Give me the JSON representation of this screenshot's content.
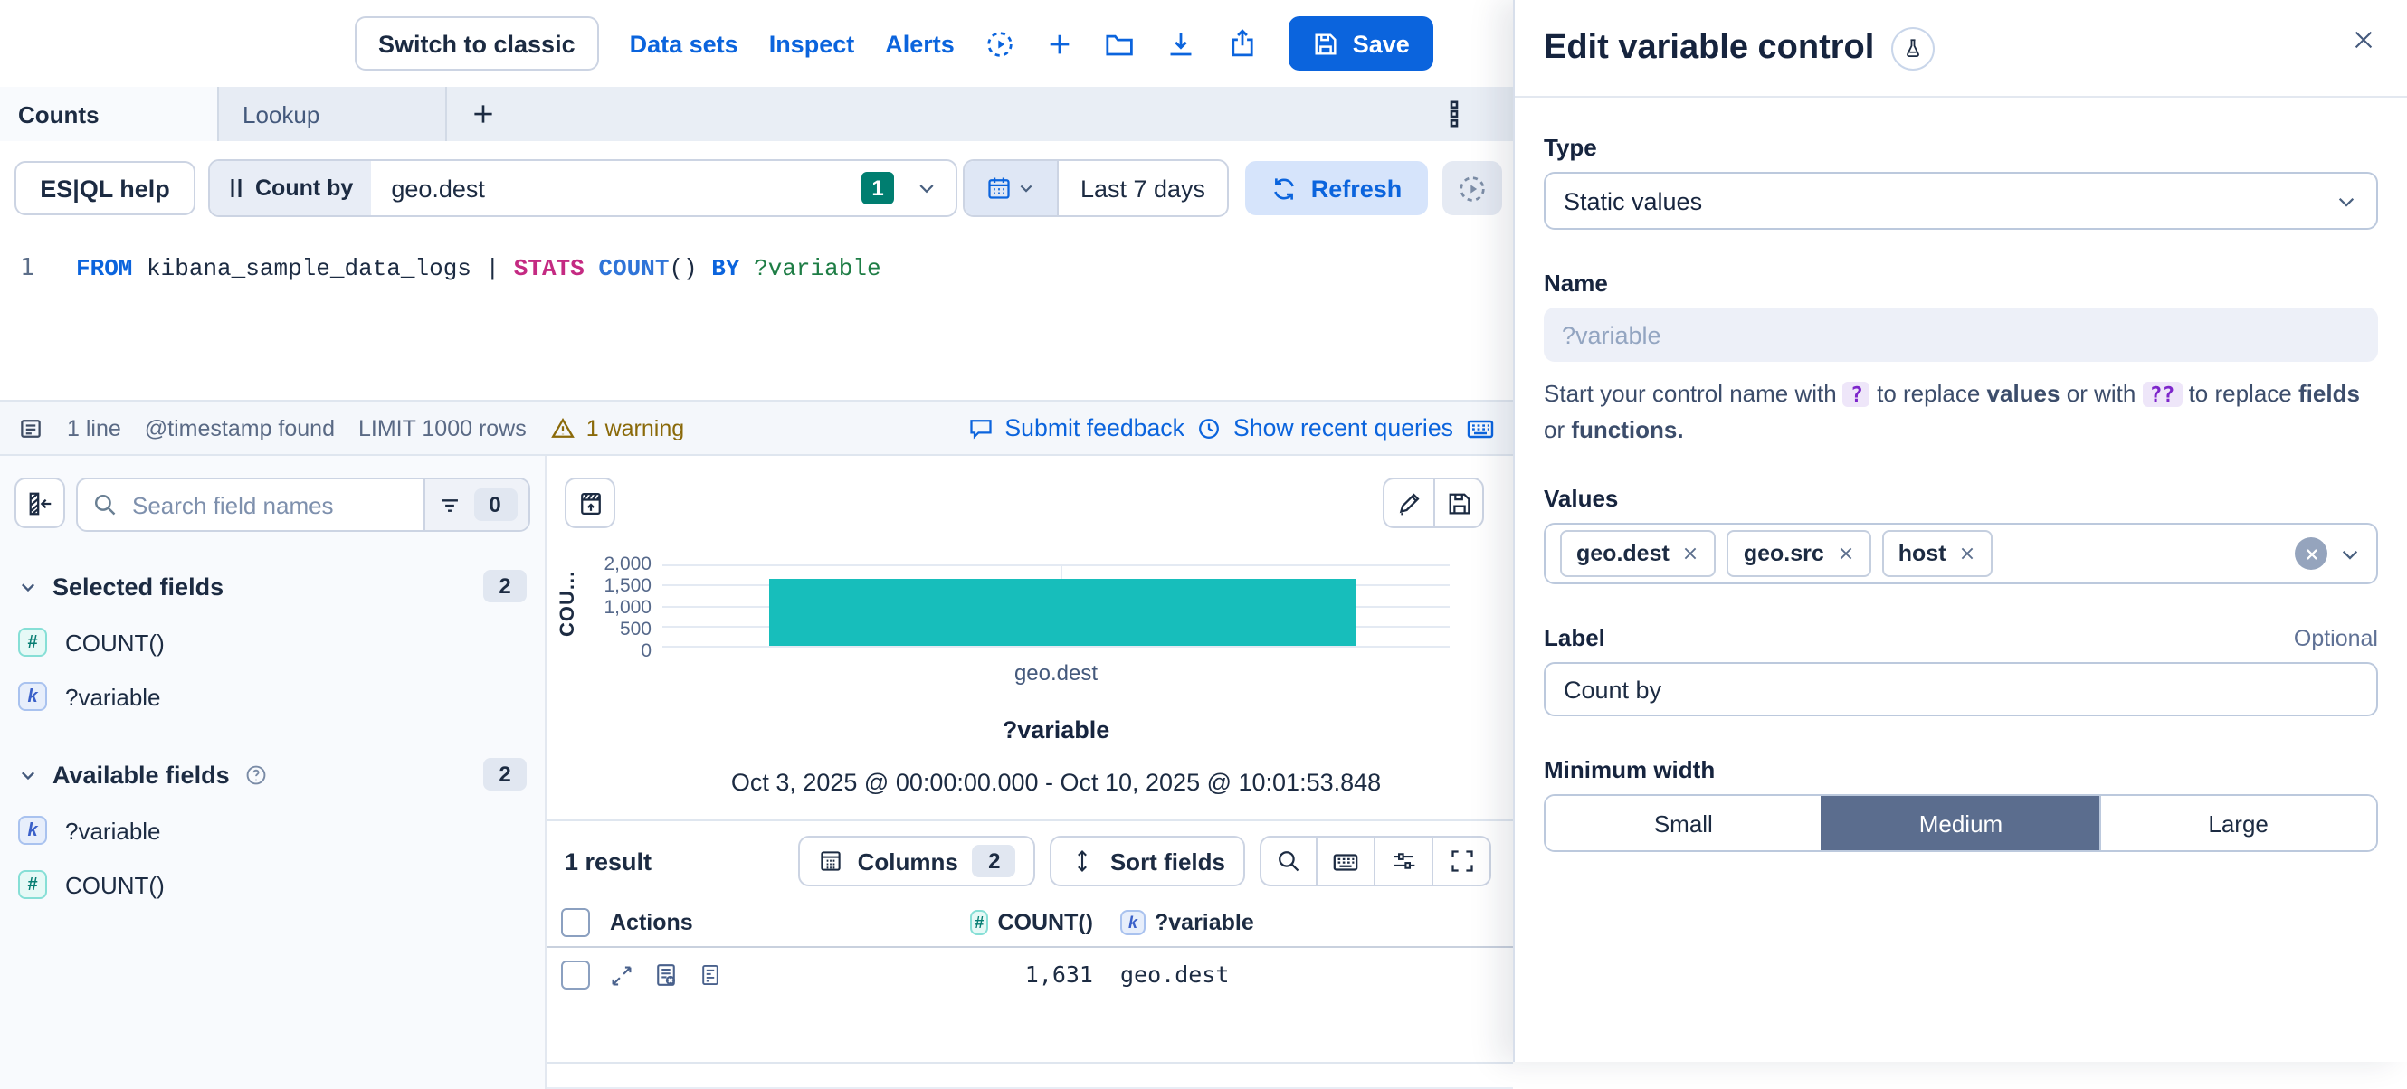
{
  "header": {
    "switch_to_classic": "Switch to classic",
    "nav": [
      "Data sets",
      "Inspect",
      "Alerts"
    ],
    "save_label": "Save"
  },
  "tabs": {
    "counts": "Counts",
    "lookup": "Lookup"
  },
  "query": {
    "help_label": "ES|QL help",
    "control_prefix": "Count by",
    "control_value": "geo.dest",
    "control_badge": "1",
    "time_range": "Last 7 days",
    "refresh_label": "Refresh"
  },
  "editor": {
    "line_number": "1",
    "code": {
      "kw_from": "FROM",
      "source": " kibana_sample_data_logs ",
      "pipe": "| ",
      "kw_stats": "STATS",
      "sp1": " ",
      "fn_count": "COUNT",
      "parens": "()",
      "sp2": " ",
      "kw_by": "BY",
      "sp3": " ",
      "variable": "?variable"
    },
    "footer": {
      "lines": "1 line",
      "timestamp": "@timestamp found",
      "limit": "LIMIT 1000 rows",
      "warning": "1 warning",
      "feedback": "Submit feedback",
      "recent": "Show recent queries"
    }
  },
  "sidebar": {
    "search_placeholder": "Search field names",
    "filter_count": "0",
    "selected": {
      "label": "Selected fields",
      "count": "2",
      "fields": [
        {
          "kind": "number",
          "glyph": "#",
          "name": "COUNT()"
        },
        {
          "kind": "keyword",
          "glyph": "k",
          "name": "?variable"
        }
      ]
    },
    "available": {
      "label": "Available fields",
      "count": "2",
      "fields": [
        {
          "kind": "keyword",
          "glyph": "k",
          "name": "?variable"
        },
        {
          "kind": "number",
          "glyph": "#",
          "name": "COUNT()"
        }
      ]
    }
  },
  "chart_data": {
    "type": "bar",
    "title": "?variable",
    "subtitle": "Oct 3, 2025 @ 00:00:00.000 - Oct 10, 2025 @ 10:01:53.848",
    "categories": [
      "geo.dest"
    ],
    "values": [
      1631
    ],
    "xlabel": "geo.dest",
    "ylabel": "COUNT()",
    "ylabel_display": "COU...",
    "ylim": [
      0,
      2000
    ],
    "yticks": [
      0,
      500,
      1000,
      1500,
      2000
    ],
    "ytick_labels": [
      "0",
      "500",
      "1,000",
      "1,500",
      "2,000"
    ],
    "bar_color": "#17bebb",
    "grid": true,
    "legend": false
  },
  "results": {
    "count": "1 result",
    "columns_label": "Columns",
    "columns_count": "2",
    "sort_label": "Sort fields",
    "table": {
      "actions": "Actions",
      "count_col": "COUNT()",
      "count_glyph": "#",
      "var_col": "?variable",
      "var_glyph": "k",
      "rows": [
        {
          "count": "1,631",
          "value": "geo.dest"
        }
      ]
    }
  },
  "panel": {
    "title": "Edit variable control",
    "type_label": "Type",
    "type_value": "Static values",
    "name_label": "Name",
    "name_placeholder": "?variable",
    "hint": {
      "p1": "Start your control name with",
      "code1": "?",
      "p2": "to replace",
      "b1": "values",
      "p3": "or with",
      "code2": "??",
      "p4": "to replace",
      "b2": "fields",
      "p5": "or",
      "b3": "functions."
    },
    "values_label": "Values",
    "values": [
      "geo.dest",
      "geo.src",
      "host"
    ],
    "label_label": "Label",
    "optional": "Optional",
    "label_value": "Count by",
    "min_width_label": "Minimum width",
    "width_options": [
      "Small",
      "Medium",
      "Large"
    ],
    "width_selected": "Medium"
  },
  "colors": {
    "accent_blue": "#0b64dd",
    "bar_teal": "#17bebb",
    "badge_green": "#007e70",
    "warning_text": "#8a6a0a",
    "selected_width_bg": "#5b6d8e"
  }
}
